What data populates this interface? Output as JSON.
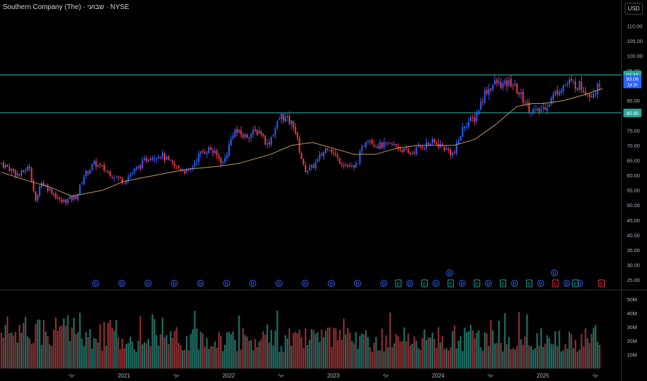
{
  "header": {
    "symbol_title": "Southern Company (The) · שבועי · NYSE",
    "currency_button": "USD"
  },
  "price_axis": {
    "ticks": [
      "110.00",
      "105.00",
      "100.00",
      "95.00",
      "90.00",
      "85.00",
      "80.00",
      "75.00",
      "70.00",
      "65.00",
      "60.00",
      "55.00",
      "50.00",
      "45.00",
      "40.00",
      "35.00",
      "30.00",
      "25.00"
    ]
  },
  "volume_axis": {
    "ticks": [
      "50M",
      "40M",
      "30M",
      "20M",
      "10M"
    ]
  },
  "time_axis": {
    "labels": [
      {
        "text": "יולי",
        "t": 2020.5
      },
      {
        "text": "2021",
        "t": 2021.0
      },
      {
        "text": "יולי",
        "t": 2021.5
      },
      {
        "text": "2022",
        "t": 2022.0
      },
      {
        "text": "יולי",
        "t": 2022.5
      },
      {
        "text": "2023",
        "t": 2023.0
      },
      {
        "text": "יולי",
        "t": 2023.5
      },
      {
        "text": "2024",
        "t": 2024.0
      },
      {
        "text": "יולי",
        "t": 2024.5
      },
      {
        "text": "2025",
        "t": 2025.0
      },
      {
        "text": "יולי",
        "t": 2025.5
      }
    ]
  },
  "colors": {
    "up": "#2962ff",
    "down": "#f23645",
    "ma": "#c49a5a",
    "hline": "#26a69a",
    "vol_up": "#1e6b62",
    "vol_down": "#8a2e30",
    "last_price_badge": "#2962ff",
    "hline_badge": "#26a69a"
  },
  "horizontal_lines": [
    {
      "price": 93.58,
      "label": "93.58"
    },
    {
      "price": 80.9,
      "label": "80.90"
    }
  ],
  "last_price": {
    "price": 93.06,
    "label": "93.06",
    "countdown": "1d 2h"
  },
  "event_markers": {
    "dividend_label": "D",
    "earnings_label": "E",
    "dividends": [
      2020.73,
      2020.98,
      2021.23,
      2021.48,
      2021.73,
      2021.98,
      2022.23,
      2022.48,
      2022.73,
      2022.98,
      2023.23,
      2023.48,
      2023.73,
      2023.98,
      2024.23,
      2024.48,
      2024.73,
      2024.98,
      2025.23,
      2025.35
    ],
    "dividends_upper": [
      2024.11,
      2025.11
    ],
    "earnings": [
      {
        "t": 2023.62,
        "neg": false
      },
      {
        "t": 2023.87,
        "neg": false
      },
      {
        "t": 2024.12,
        "neg": false
      },
      {
        "t": 2024.37,
        "neg": false
      },
      {
        "t": 2024.62,
        "neg": false
      },
      {
        "t": 2024.87,
        "neg": false
      },
      {
        "t": 2025.12,
        "neg": true
      },
      {
        "t": 2025.31,
        "neg": false
      },
      {
        "t": 2025.56,
        "neg": true
      }
    ]
  },
  "chart_data": {
    "type": "candlestick",
    "title": "Southern Company (The) · שבועי · NYSE",
    "interval": "weekly",
    "currency": "USD",
    "ylim": [
      22,
      114
    ],
    "volume_ylim": [
      0,
      55000000
    ],
    "series": [
      {
        "name": "price_path",
        "t": [
          2019.83,
          2019.92,
          2020.0,
          2020.1,
          2020.16,
          2020.2,
          2020.3,
          2020.4,
          2020.55,
          2020.62,
          2020.72,
          2020.85,
          2021.0,
          2021.08,
          2021.15,
          2021.23,
          2021.35,
          2021.48,
          2021.62,
          2021.72,
          2021.82,
          2021.95,
          2022.05,
          2022.15,
          2022.3,
          2022.37,
          2022.5,
          2022.62,
          2022.72,
          2022.78,
          2022.85,
          2022.95,
          2023.05,
          2023.2,
          2023.32,
          2023.42,
          2023.5,
          2023.6,
          2023.72,
          2023.85,
          2023.95,
          2024.02,
          2024.15,
          2024.25,
          2024.35,
          2024.45,
          2024.55,
          2024.62,
          2024.7,
          2024.8,
          2024.88,
          2024.95,
          2025.05,
          2025.15,
          2025.25,
          2025.35,
          2025.45,
          2025.52,
          2025.57
        ],
        "close": [
          64,
          62,
          60,
          63,
          50,
          58,
          55,
          51,
          53,
          60,
          64,
          61,
          58,
          61,
          63,
          66,
          67,
          63,
          61,
          67,
          69,
          64,
          75,
          73,
          75,
          70,
          80,
          77,
          62,
          62,
          65,
          70,
          65,
          62,
          73,
          70,
          70,
          70,
          67,
          70,
          71,
          70,
          67,
          77,
          79,
          88,
          91,
          90,
          91,
          86,
          82,
          81,
          84,
          89,
          91,
          90,
          87,
          89,
          93.06
        ]
      },
      {
        "name": "ma_40w",
        "t": [
          2019.83,
          2020.1,
          2020.3,
          2020.5,
          2020.8,
          2021.0,
          2021.3,
          2021.6,
          2021.9,
          2022.1,
          2022.4,
          2022.6,
          2022.8,
          2023.0,
          2023.2,
          2023.4,
          2023.6,
          2023.8,
          2024.0,
          2024.15,
          2024.35,
          2024.55,
          2024.75,
          2024.9,
          2025.0,
          2025.2,
          2025.4,
          2025.57
        ],
        "values": [
          61,
          58,
          56,
          53,
          55,
          58,
          60,
          62,
          63,
          64,
          67,
          70,
          71,
          69,
          67,
          67,
          69,
          70,
          70,
          70,
          72,
          77,
          83,
          84,
          84,
          85,
          87,
          89
        ]
      }
    ],
    "volume": {
      "t_range": [
        2019.83,
        2025.57
      ],
      "unit": "shares",
      "typical_range": [
        10000000,
        45000000
      ]
    }
  }
}
